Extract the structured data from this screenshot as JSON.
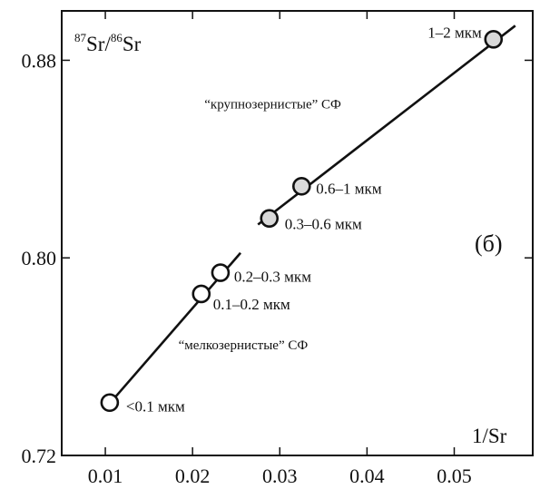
{
  "chart_data": {
    "type": "scatter",
    "panel_label": "(б)",
    "ylabel": {
      "sup1": "87",
      "main1": "Sr/",
      "sup2": "86",
      "main2": "Sr"
    },
    "xlabel": "1/Sr",
    "xlim": [
      0.005,
      0.059
    ],
    "ylim": [
      0.72,
      0.9
    ],
    "xticks": [
      0.01,
      0.02,
      0.03,
      0.04,
      0.05
    ],
    "xtick_labels": [
      "0.01",
      "0.02",
      "0.03",
      "0.04",
      "0.05"
    ],
    "yticks": [
      0.72,
      0.8,
      0.88
    ],
    "ytick_labels": [
      "0.72",
      "0.80",
      "0.88"
    ],
    "grid": false,
    "series": [
      {
        "group": "fine",
        "points": [
          {
            "x": 0.0105,
            "y": 0.7414,
            "label": "<0.1 мкм",
            "fill": "#ffffff"
          },
          {
            "x": 0.021,
            "y": 0.7854,
            "label": "0.1–0.2 мкм",
            "fill": "#ffffff"
          },
          {
            "x": 0.0232,
            "y": 0.794,
            "label": "0.2–0.3 мкм",
            "fill": "#ffffff"
          }
        ],
        "fit_line": {
          "x": [
            0.01,
            0.0255
          ],
          "y": [
            0.739,
            0.802
          ]
        }
      },
      {
        "group": "coarse",
        "points": [
          {
            "x": 0.0288,
            "y": 0.816,
            "label": "0.3–0.6 мкм",
            "fill": "#d9d9d9"
          },
          {
            "x": 0.0325,
            "y": 0.829,
            "label": "0.6–1 мкм",
            "fill": "#d9d9d9"
          },
          {
            "x": 0.0545,
            "y": 0.8885,
            "label": "1–2 мкм",
            "fill": "#d9d9d9"
          }
        ],
        "fit_line": {
          "x": [
            0.0275,
            0.057
          ],
          "y": [
            0.8135,
            0.894
          ]
        }
      }
    ],
    "annotations": [
      {
        "text": "“крупнозернистые” СФ",
        "x": 0.0292,
        "y": 0.8605
      },
      {
        "text": "“мелкозернистые” СФ",
        "x": 0.0258,
        "y": 0.763
      }
    ]
  }
}
